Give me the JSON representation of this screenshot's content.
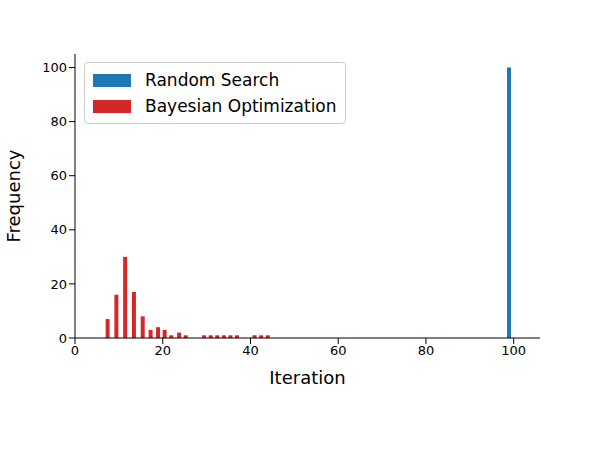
{
  "chart_data": {
    "type": "bar",
    "x_label": "Iteration",
    "y_label": "Frequency",
    "x": [
      7.5,
      9.5,
      11.5,
      13.5,
      15.5,
      17.3,
      19,
      20.5,
      22,
      23.8,
      25.3,
      29.5,
      31,
      32.5,
      34,
      35.5,
      37,
      41,
      42.5,
      44,
      99
    ],
    "series": [
      {
        "name": "Random Search",
        "color": "#1f77b4",
        "values": [
          null,
          null,
          null,
          null,
          null,
          null,
          null,
          null,
          null,
          null,
          null,
          null,
          null,
          null,
          null,
          null,
          null,
          null,
          null,
          null,
          100
        ]
      },
      {
        "name": "Bayesian Optimization",
        "color": "#d62728",
        "values": [
          7,
          16,
          30,
          17,
          8,
          3,
          4,
          3,
          1,
          2,
          1,
          1,
          1,
          1,
          1,
          1,
          1,
          1,
          1,
          1,
          null
        ]
      }
    ],
    "xlim": [
      0,
      106
    ],
    "xticks": [
      0,
      20,
      40,
      60,
      80,
      100
    ],
    "ylim": [
      0,
      105
    ],
    "yticks": [
      0,
      20,
      40,
      60,
      80,
      100
    ],
    "legend": "upper left"
  }
}
